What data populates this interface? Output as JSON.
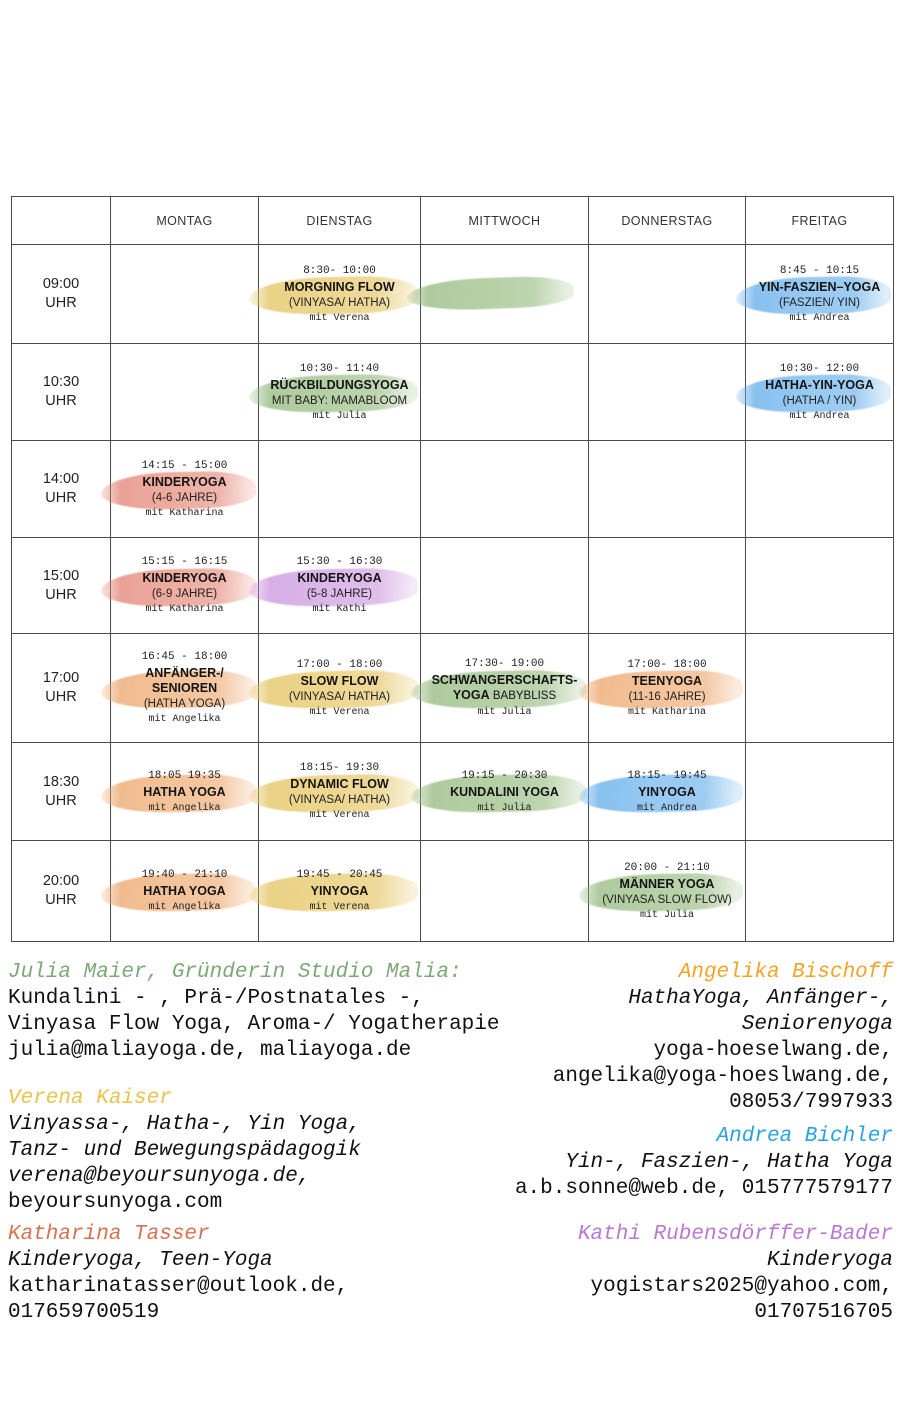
{
  "table": {
    "days": [
      "MONTAG",
      "DIENSTAG",
      "MITTWOCH",
      "DONNERSTAG",
      "FREITAG"
    ],
    "time_unit": "UHR",
    "rows": [
      {
        "time": "09:00",
        "cells": [
          null,
          {
            "time": "8:30- 10:00",
            "title": "MORGNING FLOW",
            "sub": "(VINYASA/ HATHA)",
            "teacher": "mit Verena",
            "color": "yellow"
          },
          {
            "swoosh": "green"
          },
          null,
          {
            "time": "8:45 - 10:15",
            "title": "YIN-FASZIEN–YOGA",
            "sub": "(FASZIEN/ YIN)",
            "teacher": "mit Andrea",
            "color": "blue"
          }
        ]
      },
      {
        "time": "10:30",
        "cells": [
          null,
          {
            "time": "10:30- 11:40",
            "title": "RÜCKBILDUNGSYOGA",
            "sub": "MIT BABY: MAMABLOOM",
            "teacher": "mit Julia",
            "color": "green"
          },
          null,
          null,
          {
            "time": "10:30- 12:00",
            "title": "HATHA-YIN-YOGA",
            "sub": "(HATHA / YIN)",
            "teacher": "mit Andrea",
            "color": "blue"
          }
        ]
      },
      {
        "time": "14:00",
        "cells": [
          {
            "time": "14:15 - 15:00",
            "title": "KINDERYOGA",
            "sub": "(4-6 JAHRE)",
            "teacher": "mit Katharina",
            "color": "red"
          },
          null,
          null,
          null,
          null
        ]
      },
      {
        "time": "15:00",
        "cells": [
          {
            "time": "15:15 - 16:15",
            "title": "KINDERYOGA",
            "sub": "(6-9 JAHRE)",
            "teacher": "mit Katharina",
            "color": "red"
          },
          {
            "time": "15:30 - 16:30",
            "title": "KINDERYOGA",
            "sub": "(5-8 JAHRE)",
            "teacher": "mit Kathi",
            "color": "purple"
          },
          null,
          null,
          null
        ]
      },
      {
        "time": "17:00",
        "cells": [
          {
            "time": "16:45 - 18:00",
            "title": "ANFÄNGER-/\nSENIOREN",
            "sub": "(HATHA YOGA)",
            "teacher": "mit Angelika",
            "color": "orange"
          },
          {
            "time": "17:00 - 18:00",
            "title": "SLOW FLOW",
            "sub": "(VINYASA/ HATHA)",
            "teacher": "mit Verena",
            "color": "yellow"
          },
          {
            "time": "17:30- 19:00",
            "title": "SCHWANGERSCHAFTS-\nYOGA",
            "title_suffix": " BABYBLISS",
            "teacher": "mit Julia",
            "color": "green"
          },
          {
            "time": "17:00- 18:00",
            "title": "TEENYOGA",
            "sub": "(11-16 JAHRE)",
            "teacher": "mit Katharina",
            "color": "orange"
          },
          null
        ]
      },
      {
        "time": "18:30",
        "cells": [
          {
            "time": "18:05 19:35",
            "title": "HATHA YOGA",
            "teacher": "mit Angelika",
            "color": "orange"
          },
          {
            "time": "18:15- 19:30",
            "title": "DYNAMIC FLOW",
            "sub": "(VINYASA/ HATHA)",
            "teacher": "mit Verena",
            "color": "yellow"
          },
          {
            "time": "19:15 - 20:30",
            "title": "KUNDALINI YOGA",
            "teacher": "mit Julia",
            "color": "green"
          },
          {
            "time": "18:15- 19:45",
            "title": "YINYOGA",
            "teacher": "mit Andrea",
            "color": "blue"
          },
          null
        ]
      },
      {
        "time": "20:00",
        "cells": [
          {
            "time": "19:40 - 21:10",
            "title": "HATHA YOGA",
            "teacher": "mit Angelika",
            "color": "orange"
          },
          {
            "time": "19:45 - 20:45",
            "title": "YINYOGA",
            "teacher": "mit Verena",
            "color": "yellow"
          },
          null,
          {
            "time": "20:00 - 21:10",
            "title": "MÄNNER YOGA",
            "sub": "(VINYASA SLOW FLOW)",
            "teacher": "mit Julia",
            "color": "green"
          },
          null
        ]
      }
    ]
  },
  "stroke_colors": {
    "yellow": "#e2c25c",
    "green": "#92b87c",
    "blue": "#61ace9",
    "red": "#e0796a",
    "orange": "#eba064",
    "purple": "#c68cda"
  },
  "contacts": {
    "left": [
      {
        "id": "julia-maier",
        "name": "Julia Maier, Gründerin Studio Malia:",
        "color": "#7ca877",
        "lines": [
          {
            "text": "Kundalini - , Prä-/Postnatales -,",
            "italic": false
          },
          {
            "text": "Vinyasa Flow Yoga, Aroma-/ Yogatherapie",
            "italic": false
          },
          {
            "text": "julia@maliayoga.de, maliayoga.de",
            "italic": false
          }
        ]
      },
      {
        "id": "verena-kaiser",
        "name": "Verena Kaiser",
        "color": "#e8c44e",
        "lines": [
          {
            "text": "Vinyassa-, Hatha-, Yin Yoga,",
            "italic": true
          },
          {
            "text": "Tanz- und Bewegungspädagogik",
            "italic": true
          },
          {
            "text": "verena@beyoursunyoga.de,",
            "italic": true
          },
          {
            "text": "beyoursunyoga.com",
            "italic": false
          }
        ]
      },
      {
        "id": "katharina-tasser",
        "name": "Katharina Tasser",
        "color": "#d7714f",
        "lines": [
          {
            "text": "Kinderyoga, Teen-Yoga",
            "italic": true
          },
          {
            "text": "katharinatasser@outlook.de,",
            "italic": false
          },
          {
            "text": "017659700519",
            "italic": false
          }
        ]
      }
    ],
    "right": [
      {
        "id": "angelika-bischoff",
        "name": "Angelika Bischoff",
        "color": "#f6a229",
        "lines": [
          {
            "text": "HathaYoga, Anfänger-,",
            "italic": true
          },
          {
            "text": "Seniorenyoga",
            "italic": true
          },
          {
            "text": "yoga-hoeselwang.de,",
            "italic": false
          },
          {
            "text": "angelika@yoga-hoeslwang.de,",
            "italic": false
          },
          {
            "text": "08053/7997933",
            "italic": false
          }
        ]
      },
      {
        "id": "andrea-bichler",
        "name": "Andrea Bichler",
        "color": "#29a3e0",
        "lines": [
          {
            "text": "Yin-, Faszien-, Hatha Yoga",
            "italic": true
          },
          {
            "text": "a.b.sonne@web.de, 015777579177",
            "italic": false
          }
        ]
      },
      {
        "id": "kathi-rubensdoerffer-bader",
        "name": "Kathi Rubensdörffer-Bader",
        "color": "#bb77d4",
        "lines": [
          {
            "text": "Kinderyoga",
            "italic": true
          },
          {
            "text": "yogistars2025@yahoo.com,",
            "italic": false
          },
          {
            "text": "01707516705",
            "italic": false
          }
        ]
      }
    ]
  }
}
